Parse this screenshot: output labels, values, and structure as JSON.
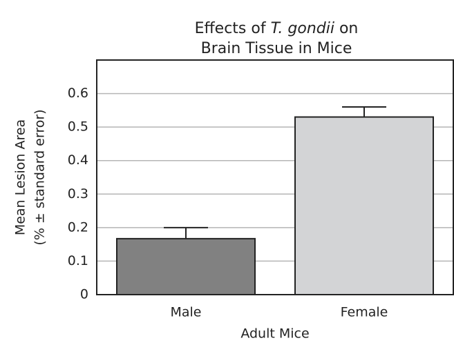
{
  "chart_data": {
    "type": "bar",
    "title": {
      "line1": [
        "Effects of",
        "T. gondii",
        "on"
      ],
      "line2": "Brain Tissue in Mice"
    },
    "x_label": "Adult Mice",
    "y_label": [
      "Mean Lesion Area",
      "(% ± standard error)"
    ],
    "categories": [
      "Male",
      "Female"
    ],
    "values": [
      0.167,
      0.53
    ],
    "errors": [
      0.033,
      0.03
    ],
    "colors": [
      "#818181",
      "#d3d4d6"
    ],
    "ylim": [
      0,
      0.7
    ],
    "yticks": [
      0,
      0.1,
      0.2,
      0.3,
      0.4,
      0.5,
      0.6
    ],
    "grid": true
  }
}
